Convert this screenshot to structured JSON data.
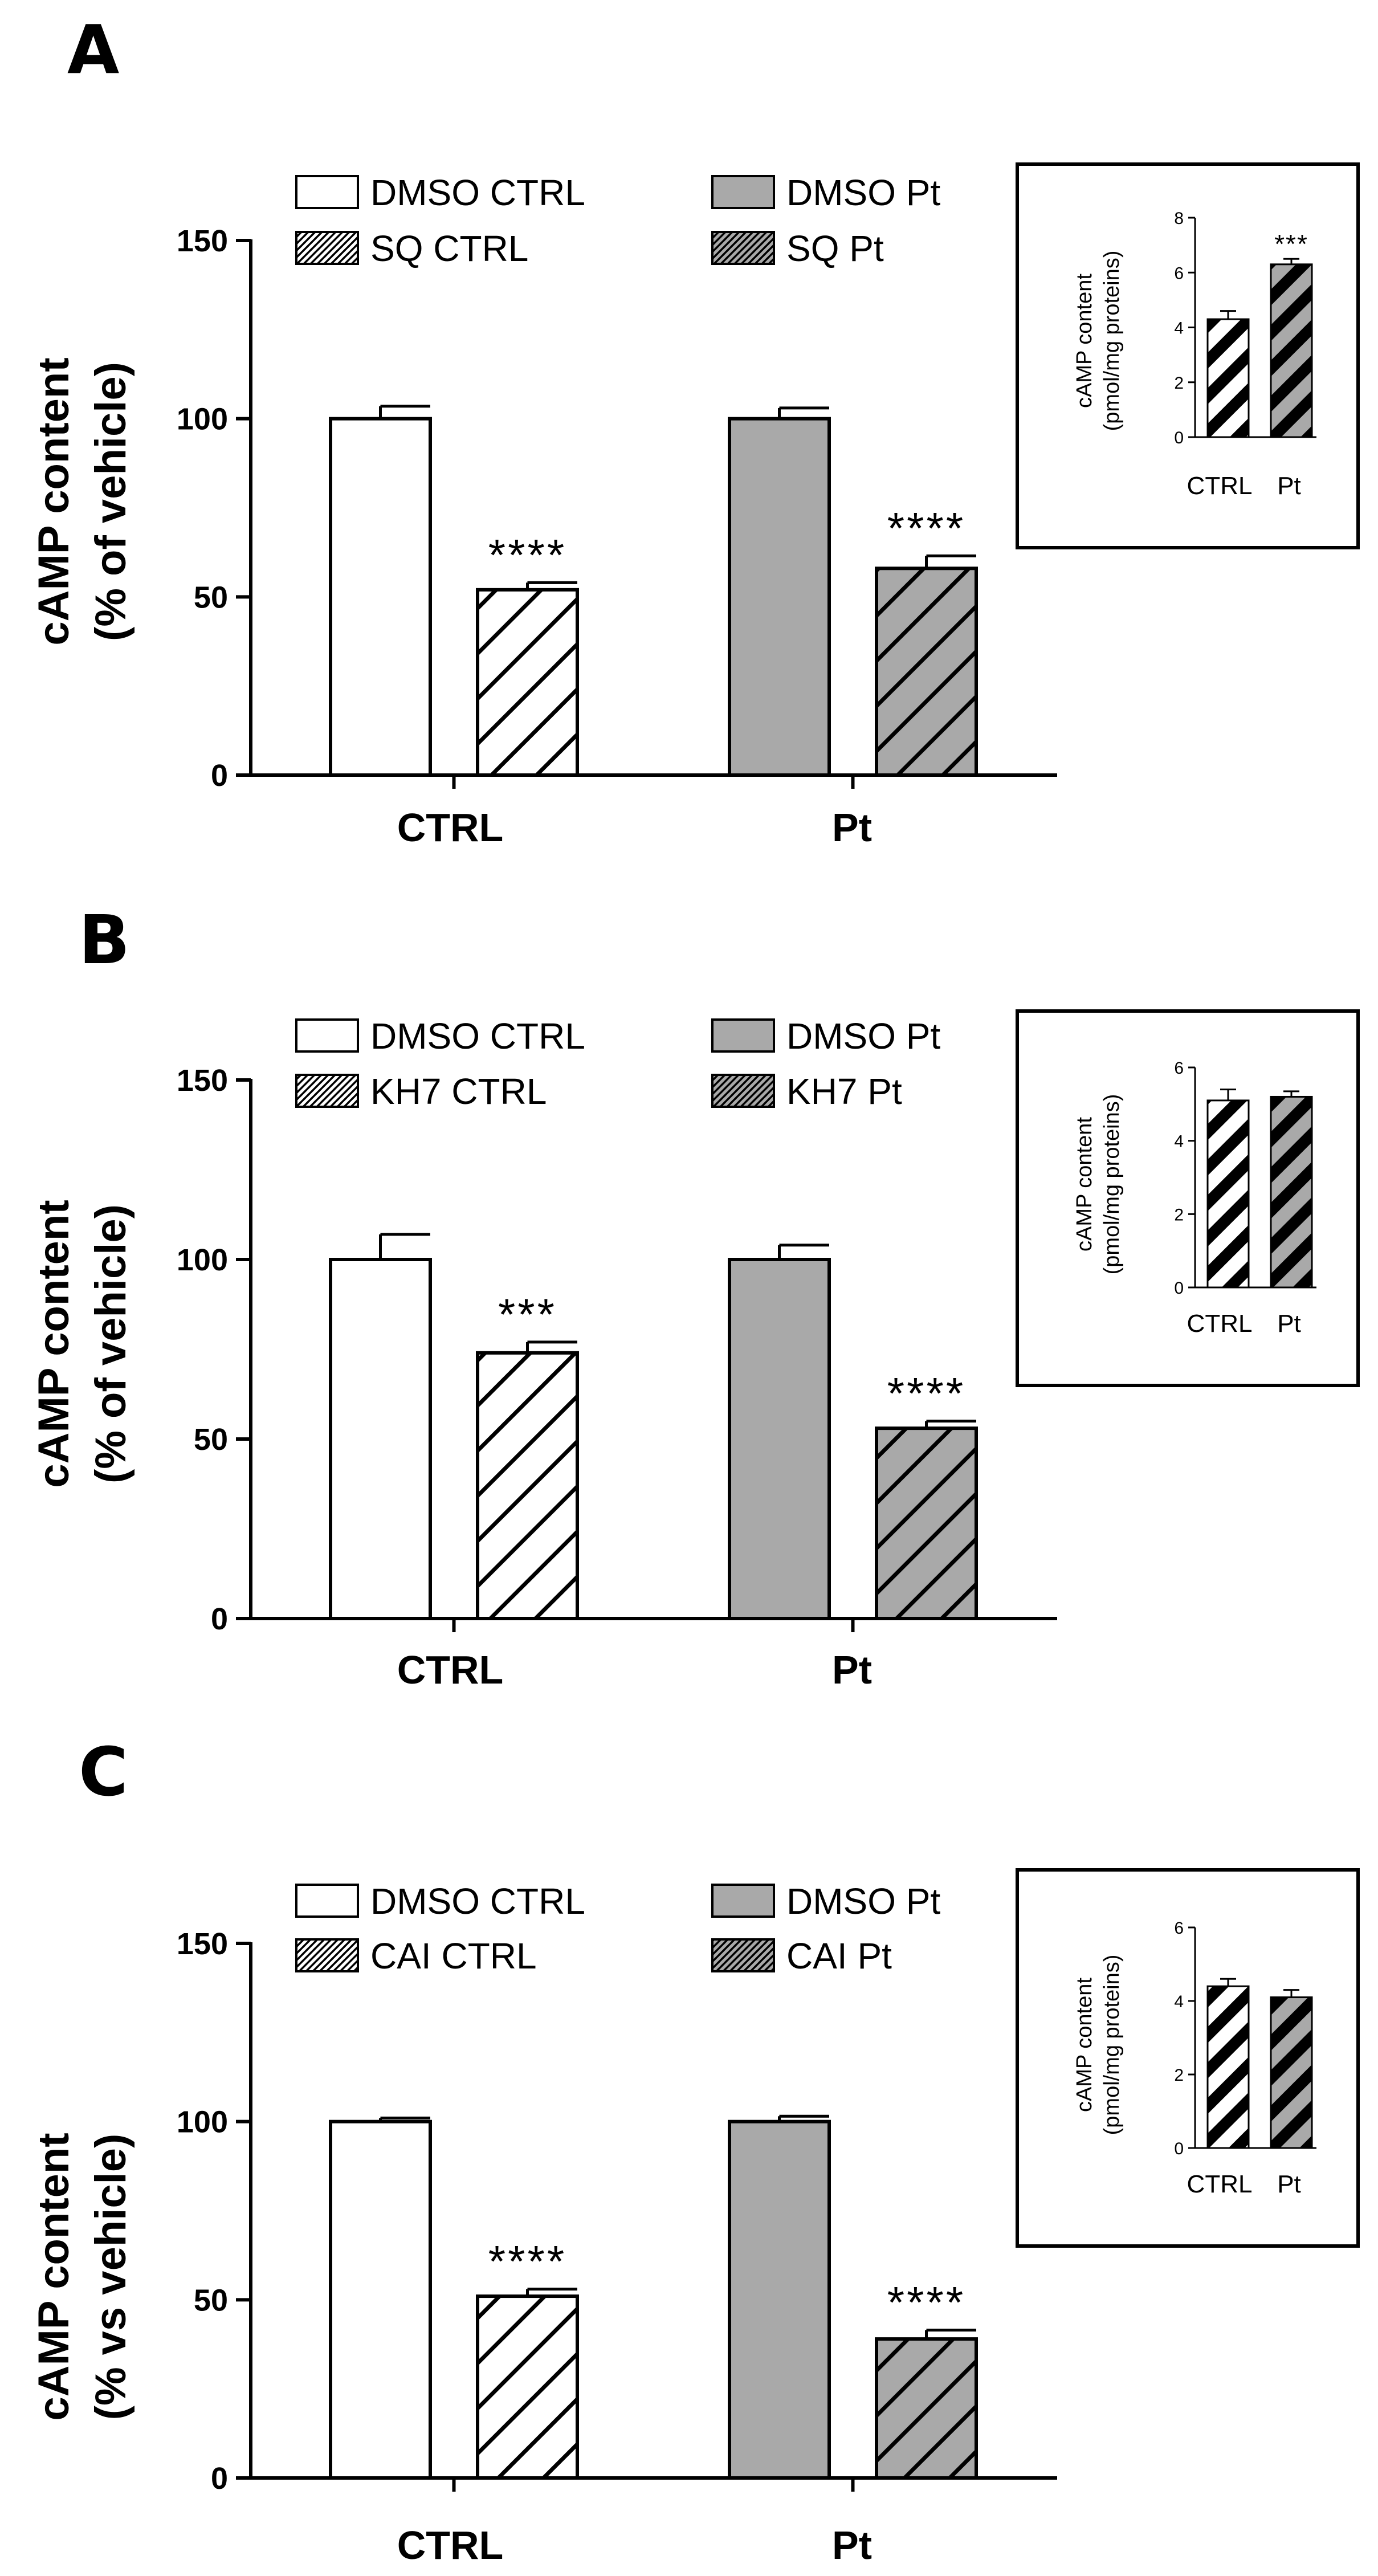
{
  "colors": {
    "dmso_ctrl": "#ffffff",
    "dmso_pt": "#a9a9a9",
    "inhibitor_ctrl": "#ffffff",
    "inhibitor_pt": "#a9a9a9",
    "stroke": "#000000"
  },
  "chart_data": [
    {
      "type": "bar",
      "panel": "A",
      "ylabel_line1": "cAMP content",
      "ylabel_line2": "(%  of vehicle)",
      "ylim": [
        0,
        150
      ],
      "yticks": [
        "0",
        "50",
        "100",
        "150"
      ],
      "categories": [
        "CTRL",
        "Pt"
      ],
      "legend": [
        "DMSO CTRL",
        "DMSO Pt",
        "SQ CTRL",
        "SQ Pt"
      ],
      "series": [
        {
          "name": "DMSO",
          "values": [
            100,
            100
          ],
          "errors": [
            3.5,
            3
          ]
        },
        {
          "name": "SQ",
          "values": [
            52,
            58
          ],
          "errors": [
            2,
            3.5
          ],
          "significance": [
            "****",
            "****"
          ]
        }
      ],
      "inset": {
        "ylabel_line1": "cAMP content",
        "ylabel_line2": "(pmol/mg proteins)",
        "ylim": [
          0,
          8
        ],
        "yticks": [
          "0",
          "2",
          "4",
          "6",
          "8"
        ],
        "categories": [
          "CTRL",
          "Pt"
        ],
        "values": [
          4.3,
          6.3
        ],
        "errors": [
          0.3,
          0.2
        ],
        "significance": [
          "",
          "***"
        ]
      }
    },
    {
      "type": "bar",
      "panel": "B",
      "ylabel_line1": "cAMP content",
      "ylabel_line2": "(%  of vehicle)",
      "ylim": [
        0,
        150
      ],
      "yticks": [
        "0",
        "50",
        "100",
        "150"
      ],
      "categories": [
        "CTRL",
        "Pt"
      ],
      "legend": [
        "DMSO CTRL",
        "DMSO Pt",
        "KH7 CTRL",
        "KH7 Pt"
      ],
      "series": [
        {
          "name": "DMSO",
          "values": [
            100,
            100
          ],
          "errors": [
            7,
            4
          ]
        },
        {
          "name": "KH7",
          "values": [
            74,
            53
          ],
          "errors": [
            3,
            2
          ],
          "significance": [
            "***",
            "****"
          ]
        }
      ],
      "inset": {
        "ylabel_line1": "cAMP content",
        "ylabel_line2": "(pmol/mg proteins)",
        "ylim": [
          0,
          6
        ],
        "yticks": [
          "0",
          "2",
          "4",
          "6"
        ],
        "categories": [
          "CTRL",
          "Pt"
        ],
        "values": [
          5.1,
          5.2
        ],
        "errors": [
          0.3,
          0.15
        ],
        "significance": [
          "",
          ""
        ]
      }
    },
    {
      "type": "bar",
      "panel": "C",
      "ylabel_line1": "cAMP content",
      "ylabel_line2": "(% vs vehicle)",
      "ylim": [
        0,
        150
      ],
      "yticks": [
        "0",
        "50",
        "100",
        "150"
      ],
      "categories": [
        "CTRL",
        "Pt"
      ],
      "legend": [
        "DMSO CTRL",
        "DMSO Pt",
        "CAI CTRL",
        "CAI Pt"
      ],
      "series": [
        {
          "name": "DMSO",
          "values": [
            100,
            100
          ],
          "errors": [
            1,
            1.5
          ]
        },
        {
          "name": "CAI",
          "values": [
            51,
            39
          ],
          "errors": [
            2,
            2.5
          ],
          "significance": [
            "****",
            "****"
          ]
        }
      ],
      "inset": {
        "ylabel_line1": "cAMP content",
        "ylabel_line2": "(pmol/mg proteins)",
        "ylim": [
          0,
          6
        ],
        "yticks": [
          "0",
          "2",
          "4",
          "6"
        ],
        "categories": [
          "CTRL",
          "Pt"
        ],
        "values": [
          4.4,
          4.1
        ],
        "errors": [
          0.2,
          0.2
        ],
        "significance": [
          "",
          ""
        ]
      }
    }
  ]
}
